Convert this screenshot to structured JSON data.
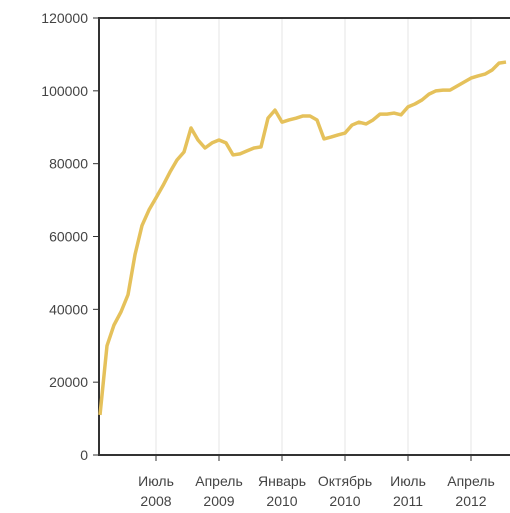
{
  "chart_data": {
    "type": "line",
    "categories": [
      null,
      null,
      null,
      null,
      null,
      null,
      null,
      null,
      "Июль 2008",
      null,
      null,
      null,
      null,
      null,
      null,
      null,
      null,
      "Апрель 2009",
      null,
      null,
      null,
      null,
      null,
      null,
      null,
      null,
      "Январь 2010",
      null,
      null,
      null,
      null,
      null,
      null,
      null,
      null,
      "Октябрь 2010",
      null,
      null,
      null,
      null,
      null,
      null,
      null,
      null,
      "Июль 2011",
      null,
      null,
      null,
      null,
      null,
      null,
      null,
      null,
      "Апрель 2012",
      null,
      null,
      null,
      null,
      null
    ],
    "series": [
      {
        "color": "#e5c15b",
        "values": [
          11000,
          30000,
          35700,
          39300,
          44000,
          55000,
          63000,
          67300,
          70600,
          74000,
          77700,
          81000,
          83200,
          89800,
          86500,
          84300,
          85700,
          86500,
          85700,
          82400,
          82700,
          83500,
          84300,
          84600,
          92500,
          94700,
          91400,
          92000,
          92500,
          93100,
          93100,
          92000,
          86800,
          87300,
          87900,
          88400,
          90600,
          91400,
          90900,
          92000,
          93600,
          93600,
          93900,
          93400,
          95600,
          96400,
          97500,
          99100,
          100000,
          100200,
          100200,
          101300,
          102400,
          103500,
          104100,
          104600,
          105700,
          107600,
          107900
        ]
      }
    ],
    "ylim": [
      0,
      120000
    ],
    "yticks": [
      0,
      20000,
      40000,
      60000,
      80000,
      100000,
      120000
    ],
    "grid": true
  }
}
